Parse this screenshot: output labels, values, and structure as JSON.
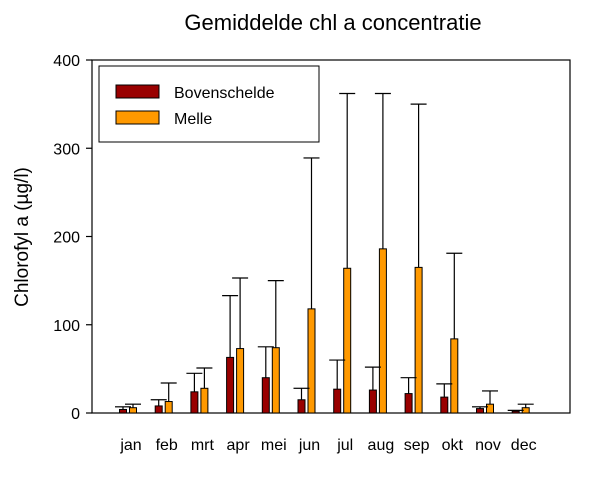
{
  "chart_data": {
    "type": "bar",
    "title": "Gemiddelde chl a concentratie",
    "xlabel": "",
    "ylabel": "Chlorofyl a (µg/l)",
    "ylim": [
      0,
      400
    ],
    "yticks": [
      0,
      100,
      200,
      300,
      400
    ],
    "categories": [
      "jan",
      "feb",
      "mrt",
      "apr",
      "mei",
      "jun",
      "jul",
      "aug",
      "sep",
      "okt",
      "nov",
      "dec"
    ],
    "series": [
      {
        "name": "Bovenschelde",
        "color": "#990000",
        "values": [
          4,
          8,
          24,
          63,
          40,
          15,
          27,
          26,
          22,
          18,
          5,
          2
        ],
        "error_upper": [
          7,
          15,
          45,
          133,
          75,
          28,
          60,
          52,
          40,
          33,
          7,
          3
        ]
      },
      {
        "name": "Melle",
        "color": "#ff9900",
        "values": [
          6,
          13,
          28,
          73,
          74,
          118,
          164,
          186,
          165,
          84,
          10,
          6
        ],
        "error_upper": [
          10,
          34,
          51,
          153,
          150,
          289,
          362,
          362,
          350,
          181,
          25,
          10
        ]
      }
    ],
    "grid": false,
    "legend_position": "top-left"
  }
}
